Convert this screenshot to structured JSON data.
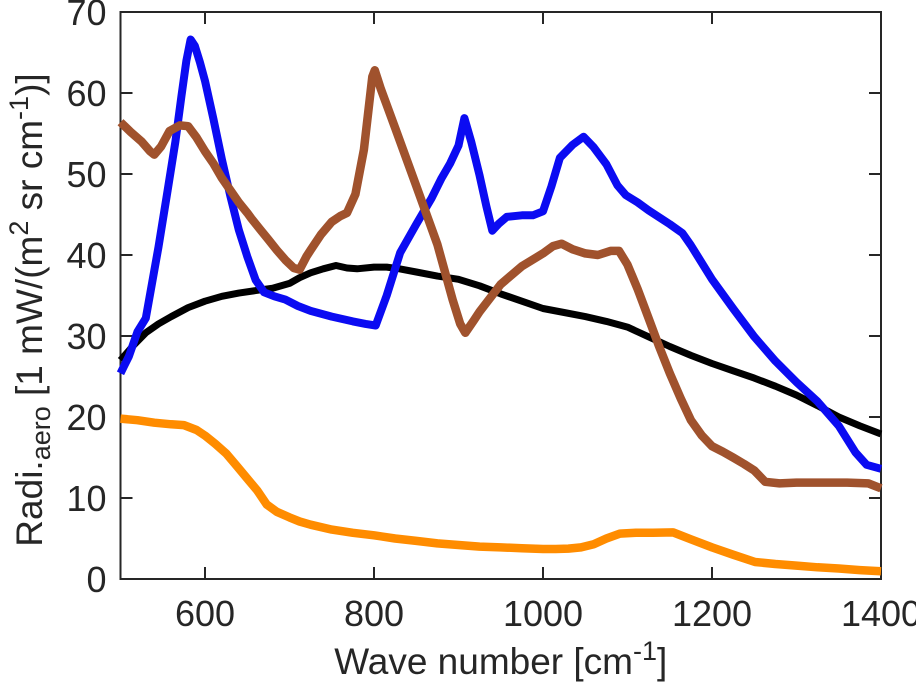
{
  "chart_data": {
    "type": "line",
    "title": "",
    "xlabel": "Wave number [cm⁻¹]",
    "xlabel_parts": [
      {
        "t": "Wave number [cm"
      },
      {
        "t": "-1",
        "sup": true
      },
      {
        "t": "]"
      }
    ],
    "ylabel": "Radi.aero [1 mW/(m² sr cm⁻¹)]",
    "ylabel_parts": [
      {
        "t": "Radi."
      },
      {
        "t": "aero",
        "sub": true
      },
      {
        "t": " [1 mW/(m"
      },
      {
        "t": "2",
        "sup": true
      },
      {
        "t": " sr cm"
      },
      {
        "t": "-1",
        "sup": true
      },
      {
        "t": ")]"
      }
    ],
    "xlim": [
      500,
      1400
    ],
    "ylim": [
      0,
      70
    ],
    "x_ticks": [
      600,
      800,
      1000,
      1200,
      1400
    ],
    "y_ticks": [
      0,
      10,
      20,
      30,
      40,
      50,
      60,
      70
    ],
    "grid": false,
    "legend": "none",
    "box": true,
    "tick_direction": "in",
    "axis_color": "#262626",
    "label_color": "#262626",
    "background": "#ffffff",
    "series": [
      {
        "name": "black-series",
        "color": "#000000",
        "line_width": 7,
        "points": [
          [
            500,
            27.0
          ],
          [
            515,
            28.8
          ],
          [
            530,
            30.4
          ],
          [
            545,
            31.5
          ],
          [
            560,
            32.4
          ],
          [
            580,
            33.5
          ],
          [
            600,
            34.3
          ],
          [
            620,
            34.9
          ],
          [
            640,
            35.3
          ],
          [
            660,
            35.6
          ],
          [
            680,
            35.9
          ],
          [
            700,
            36.5
          ],
          [
            712,
            37.2
          ],
          [
            725,
            37.8
          ],
          [
            740,
            38.3
          ],
          [
            755,
            38.7
          ],
          [
            768,
            38.4
          ],
          [
            780,
            38.3
          ],
          [
            800,
            38.5
          ],
          [
            815,
            38.5
          ],
          [
            830,
            38.3
          ],
          [
            850,
            37.9
          ],
          [
            875,
            37.4
          ],
          [
            900,
            37.0
          ],
          [
            925,
            36.2
          ],
          [
            950,
            35.2
          ],
          [
            975,
            34.3
          ],
          [
            1000,
            33.4
          ],
          [
            1025,
            32.9
          ],
          [
            1050,
            32.4
          ],
          [
            1075,
            31.8
          ],
          [
            1100,
            31.1
          ],
          [
            1125,
            29.9
          ],
          [
            1150,
            28.7
          ],
          [
            1175,
            27.6
          ],
          [
            1200,
            26.6
          ],
          [
            1225,
            25.7
          ],
          [
            1250,
            24.8
          ],
          [
            1275,
            23.8
          ],
          [
            1300,
            22.7
          ],
          [
            1325,
            21.4
          ],
          [
            1350,
            20.0
          ],
          [
            1375,
            18.9
          ],
          [
            1400,
            17.9
          ]
        ]
      },
      {
        "name": "blue-series",
        "color": "#0b0bf2",
        "line_width": 8,
        "points": [
          [
            500,
            25.4
          ],
          [
            510,
            27.5
          ],
          [
            520,
            30.5
          ],
          [
            530,
            32.2
          ],
          [
            545,
            41.0
          ],
          [
            555,
            47.5
          ],
          [
            565,
            54.0
          ],
          [
            572,
            59.5
          ],
          [
            578,
            64.0
          ],
          [
            583,
            66.6
          ],
          [
            588,
            65.8
          ],
          [
            594,
            63.8
          ],
          [
            600,
            61.5
          ],
          [
            610,
            56.8
          ],
          [
            620,
            51.8
          ],
          [
            630,
            47.3
          ],
          [
            640,
            43.1
          ],
          [
            650,
            39.8
          ],
          [
            660,
            36.9
          ],
          [
            670,
            35.4
          ],
          [
            682,
            34.9
          ],
          [
            695,
            34.5
          ],
          [
            710,
            33.7
          ],
          [
            725,
            33.1
          ],
          [
            750,
            32.4
          ],
          [
            775,
            31.8
          ],
          [
            790,
            31.5
          ],
          [
            802,
            31.3
          ],
          [
            815,
            35.0
          ],
          [
            831,
            40.3
          ],
          [
            850,
            43.8
          ],
          [
            868,
            47.0
          ],
          [
            880,
            49.5
          ],
          [
            890,
            51.3
          ],
          [
            900,
            53.5
          ],
          [
            907,
            56.9
          ],
          [
            915,
            54.0
          ],
          [
            925,
            49.8
          ],
          [
            933,
            46.0
          ],
          [
            940,
            43.0
          ],
          [
            948,
            43.9
          ],
          [
            957,
            44.7
          ],
          [
            975,
            44.9
          ],
          [
            988,
            44.9
          ],
          [
            1000,
            45.4
          ],
          [
            1010,
            48.5
          ],
          [
            1020,
            52.0
          ],
          [
            1035,
            53.6
          ],
          [
            1048,
            54.6
          ],
          [
            1060,
            53.3
          ],
          [
            1075,
            51.2
          ],
          [
            1088,
            48.6
          ],
          [
            1098,
            47.4
          ],
          [
            1112,
            46.5
          ],
          [
            1125,
            45.5
          ],
          [
            1150,
            43.8
          ],
          [
            1165,
            42.7
          ],
          [
            1175,
            41.2
          ],
          [
            1200,
            37.0
          ],
          [
            1225,
            33.4
          ],
          [
            1250,
            29.9
          ],
          [
            1275,
            26.9
          ],
          [
            1300,
            24.3
          ],
          [
            1325,
            21.9
          ],
          [
            1350,
            18.9
          ],
          [
            1370,
            15.6
          ],
          [
            1383,
            14.1
          ],
          [
            1400,
            13.6
          ]
        ]
      },
      {
        "name": "brown-series",
        "color": "#a0522d",
        "line_width": 8.5,
        "points": [
          [
            500,
            56.4
          ],
          [
            512,
            55.2
          ],
          [
            525,
            54.0
          ],
          [
            535,
            52.8
          ],
          [
            540,
            52.4
          ],
          [
            548,
            53.4
          ],
          [
            558,
            55.3
          ],
          [
            570,
            56.0
          ],
          [
            580,
            55.9
          ],
          [
            590,
            54.5
          ],
          [
            600,
            52.8
          ],
          [
            610,
            51.3
          ],
          [
            620,
            49.5
          ],
          [
            630,
            48.0
          ],
          [
            640,
            46.5
          ],
          [
            650,
            45.2
          ],
          [
            655,
            44.5
          ],
          [
            665,
            43.2
          ],
          [
            675,
            41.9
          ],
          [
            685,
            40.6
          ],
          [
            695,
            39.4
          ],
          [
            705,
            38.4
          ],
          [
            712,
            38.2
          ],
          [
            720,
            39.8
          ],
          [
            725,
            40.6
          ],
          [
            737,
            42.5
          ],
          [
            750,
            44.1
          ],
          [
            760,
            44.8
          ],
          [
            768,
            45.2
          ],
          [
            778,
            47.5
          ],
          [
            788,
            53.0
          ],
          [
            798,
            62.0
          ],
          [
            801,
            62.8
          ],
          [
            808,
            60.5
          ],
          [
            825,
            55.7
          ],
          [
            850,
            48.5
          ],
          [
            875,
            41.3
          ],
          [
            893,
            34.5
          ],
          [
            902,
            31.5
          ],
          [
            908,
            30.4
          ],
          [
            918,
            31.9
          ],
          [
            925,
            33.0
          ],
          [
            950,
            36.4
          ],
          [
            975,
            38.6
          ],
          [
            1000,
            40.2
          ],
          [
            1012,
            41.1
          ],
          [
            1022,
            41.4
          ],
          [
            1035,
            40.7
          ],
          [
            1050,
            40.2
          ],
          [
            1065,
            40.0
          ],
          [
            1080,
            40.5
          ],
          [
            1090,
            40.5
          ],
          [
            1100,
            38.8
          ],
          [
            1112,
            35.8
          ],
          [
            1125,
            32.2
          ],
          [
            1137,
            28.8
          ],
          [
            1150,
            25.4
          ],
          [
            1163,
            22.3
          ],
          [
            1175,
            19.6
          ],
          [
            1188,
            17.7
          ],
          [
            1200,
            16.4
          ],
          [
            1213,
            15.7
          ],
          [
            1225,
            15.0
          ],
          [
            1238,
            14.2
          ],
          [
            1250,
            13.4
          ],
          [
            1263,
            12.0
          ],
          [
            1280,
            11.8
          ],
          [
            1300,
            11.9
          ],
          [
            1330,
            11.9
          ],
          [
            1360,
            11.9
          ],
          [
            1385,
            11.8
          ],
          [
            1400,
            11.2
          ]
        ]
      },
      {
        "name": "orange-series",
        "color": "#ff8c00",
        "line_width": 8.5,
        "points": [
          [
            500,
            19.8
          ],
          [
            520,
            19.6
          ],
          [
            540,
            19.3
          ],
          [
            560,
            19.1
          ],
          [
            575,
            19.0
          ],
          [
            590,
            18.4
          ],
          [
            600,
            17.7
          ],
          [
            612,
            16.7
          ],
          [
            625,
            15.5
          ],
          [
            638,
            13.9
          ],
          [
            650,
            12.4
          ],
          [
            662,
            10.9
          ],
          [
            673,
            9.2
          ],
          [
            685,
            8.3
          ],
          [
            700,
            7.6
          ],
          [
            712,
            7.1
          ],
          [
            725,
            6.7
          ],
          [
            750,
            6.1
          ],
          [
            775,
            5.7
          ],
          [
            800,
            5.4
          ],
          [
            825,
            5.0
          ],
          [
            850,
            4.7
          ],
          [
            875,
            4.4
          ],
          [
            900,
            4.2
          ],
          [
            925,
            4.0
          ],
          [
            950,
            3.9
          ],
          [
            975,
            3.8
          ],
          [
            1000,
            3.7
          ],
          [
            1015,
            3.7
          ],
          [
            1030,
            3.75
          ],
          [
            1045,
            3.9
          ],
          [
            1060,
            4.3
          ],
          [
            1075,
            5.0
          ],
          [
            1091,
            5.6
          ],
          [
            1110,
            5.7
          ],
          [
            1130,
            5.7
          ],
          [
            1154,
            5.75
          ],
          [
            1175,
            4.9
          ],
          [
            1200,
            3.9
          ],
          [
            1225,
            3.0
          ],
          [
            1251,
            2.1
          ],
          [
            1275,
            1.85
          ],
          [
            1300,
            1.65
          ],
          [
            1325,
            1.45
          ],
          [
            1350,
            1.3
          ],
          [
            1375,
            1.1
          ],
          [
            1400,
            0.95
          ]
        ]
      }
    ]
  }
}
